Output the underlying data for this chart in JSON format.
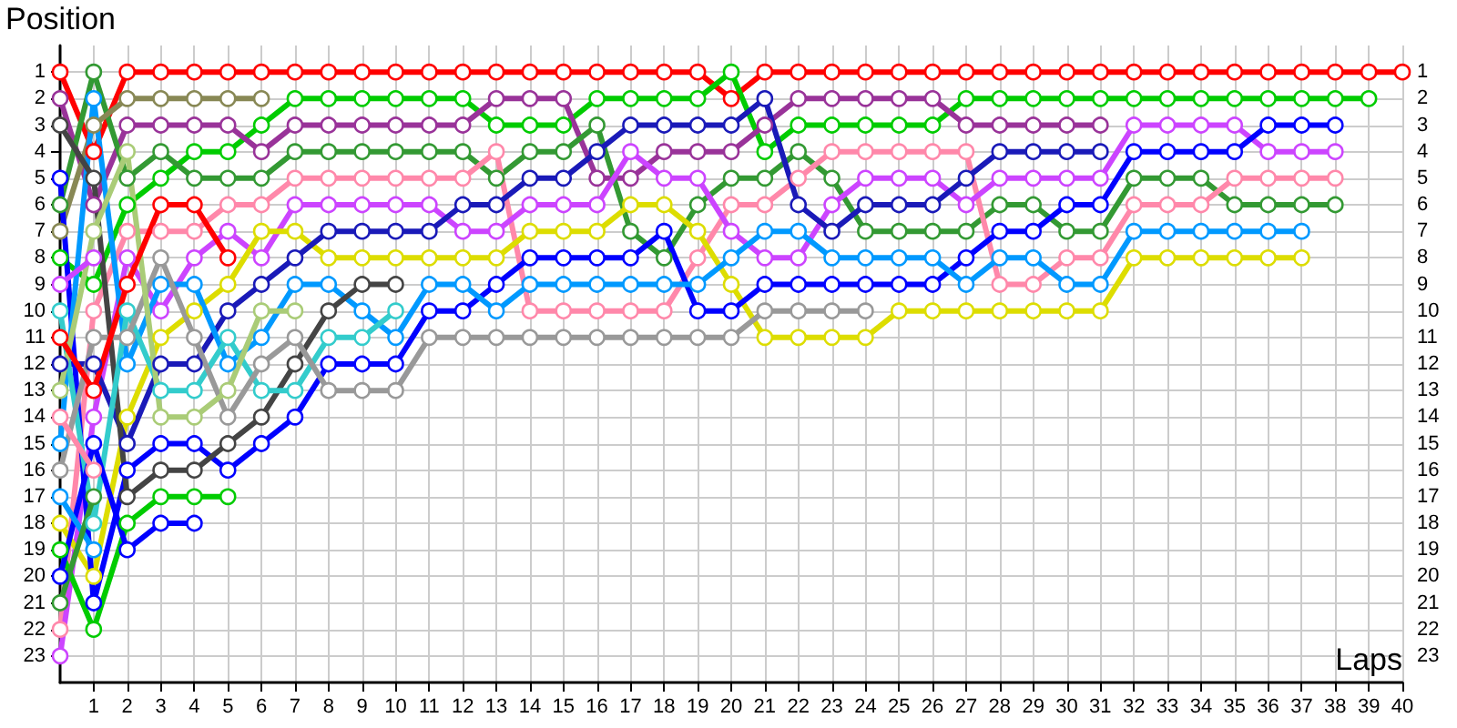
{
  "chart_data": {
    "type": "line",
    "xlabel": "Laps",
    "ylabel": "Position",
    "x": [
      0,
      1,
      2,
      3,
      4,
      5,
      6,
      7,
      8,
      9,
      10,
      11,
      12,
      13,
      14,
      15,
      16,
      17,
      18,
      19,
      20,
      21,
      22,
      23,
      24,
      25,
      26,
      27,
      28,
      29,
      30,
      31,
      32,
      33,
      34,
      35,
      36,
      37,
      38,
      39,
      40
    ],
    "xlim": [
      0,
      40
    ],
    "xticks": [
      1,
      2,
      3,
      4,
      5,
      6,
      7,
      8,
      9,
      10,
      11,
      12,
      13,
      14,
      15,
      16,
      17,
      18,
      19,
      20,
      21,
      22,
      23,
      24,
      25,
      26,
      27,
      28,
      29,
      30,
      31,
      32,
      33,
      34,
      35,
      36,
      37,
      38,
      39,
      40
    ],
    "ylim": [
      24,
      0
    ],
    "yticks": [
      1,
      2,
      3,
      4,
      5,
      6,
      7,
      8,
      9,
      10,
      11,
      12,
      13,
      14,
      15,
      16,
      17,
      18,
      19,
      20,
      21,
      22,
      23
    ],
    "y2lim": [
      24,
      0
    ],
    "y2ticks": [
      1,
      2,
      3,
      4,
      5,
      6,
      7,
      8,
      9,
      10,
      11,
      12,
      13,
      14,
      15,
      16,
      17,
      18,
      19,
      20,
      21,
      22,
      23
    ],
    "grid": true,
    "marker": "circle",
    "series": [
      {
        "color": "#ff0000",
        "values": [
          1,
          4,
          1,
          1,
          1,
          1,
          1,
          1,
          1,
          1,
          1,
          1,
          1,
          1,
          1,
          1,
          1,
          1,
          1,
          1,
          2,
          1,
          1,
          1,
          1,
          1,
          1,
          1,
          1,
          1,
          1,
          1,
          1,
          1,
          1,
          1,
          1,
          1,
          1,
          1,
          1
        ]
      },
      {
        "color": "#00cc00",
        "values": [
          8,
          9,
          6,
          5,
          4,
          4,
          3,
          2,
          2,
          2,
          2,
          2,
          2,
          3,
          3,
          3,
          2,
          2,
          2,
          2,
          1,
          4,
          3,
          3,
          3,
          3,
          3,
          2,
          2,
          2,
          2,
          2,
          2,
          2,
          2,
          2,
          2,
          2,
          2,
          2,
          null
        ]
      },
      {
        "color": "#993399",
        "values": [
          2,
          6,
          3,
          3,
          3,
          3,
          4,
          3,
          3,
          3,
          3,
          3,
          3,
          2,
          2,
          2,
          5,
          5,
          4,
          4,
          4,
          3,
          2,
          2,
          2,
          2,
          2,
          3,
          3,
          3,
          3,
          3,
          null,
          null,
          null,
          null,
          null,
          null,
          null,
          null,
          null
        ]
      },
      {
        "color": "#339933",
        "values": [
          6,
          1,
          5,
          4,
          5,
          5,
          5,
          4,
          4,
          4,
          4,
          4,
          4,
          5,
          4,
          4,
          3,
          7,
          8,
          6,
          5,
          5,
          4,
          5,
          7,
          7,
          7,
          7,
          6,
          6,
          7,
          7,
          5,
          5,
          5,
          6,
          6,
          6,
          6,
          null,
          null
        ]
      },
      {
        "color": "#888855",
        "values": [
          7,
          3,
          2,
          2,
          2,
          2,
          2,
          null,
          null,
          null,
          null,
          null,
          null,
          null,
          null,
          null,
          null,
          null,
          null,
          null,
          null,
          null,
          null,
          null,
          null,
          null,
          null,
          null,
          null,
          null,
          null,
          null,
          null,
          null,
          null,
          null,
          null,
          null,
          null,
          null,
          null
        ]
      },
      {
        "color": "#ff88aa",
        "values": [
          22,
          10,
          7,
          7,
          7,
          6,
          6,
          5,
          5,
          5,
          5,
          5,
          5,
          4,
          10,
          10,
          10,
          10,
          10,
          8,
          6,
          6,
          5,
          4,
          4,
          4,
          4,
          4,
          9,
          9,
          8,
          8,
          6,
          6,
          6,
          5,
          5,
          5,
          5,
          null,
          null
        ]
      },
      {
        "color": "#cc44ff",
        "values": [
          23,
          14,
          8,
          10,
          8,
          7,
          8,
          6,
          6,
          6,
          6,
          6,
          7,
          7,
          6,
          6,
          6,
          4,
          5,
          5,
          7,
          8,
          8,
          6,
          5,
          5,
          5,
          6,
          5,
          5,
          5,
          5,
          3,
          3,
          3,
          3,
          4,
          4,
          4,
          null,
          null
        ]
      },
      {
        "color": "#dddd00",
        "values": [
          18,
          20,
          14,
          11,
          10,
          9,
          7,
          7,
          8,
          8,
          8,
          8,
          8,
          8,
          7,
          7,
          7,
          6,
          6,
          7,
          9,
          11,
          11,
          11,
          11,
          10,
          10,
          10,
          10,
          10,
          10,
          10,
          8,
          8,
          8,
          8,
          8,
          8,
          null,
          null,
          null
        ]
      },
      {
        "color": "#1a1ab8",
        "values": [
          12,
          12,
          15,
          12,
          12,
          10,
          9,
          8,
          7,
          7,
          7,
          7,
          6,
          6,
          5,
          5,
          4,
          3,
          3,
          3,
          3,
          2,
          6,
          7,
          6,
          6,
          6,
          5,
          4,
          4,
          4,
          4,
          null,
          null,
          null,
          null,
          null,
          null,
          null,
          null,
          null
        ]
      },
      {
        "color": "#0000ff",
        "values": [
          5,
          21,
          16,
          15,
          15,
          16,
          15,
          14,
          12,
          12,
          12,
          10,
          10,
          9,
          8,
          8,
          8,
          8,
          7,
          10,
          10,
          9,
          9,
          9,
          9,
          9,
          9,
          8,
          7,
          7,
          6,
          6,
          4,
          4,
          4,
          4,
          3,
          3,
          3,
          null,
          null
        ]
      },
      {
        "color": "#0099ff",
        "values": [
          15,
          2,
          12,
          9,
          9,
          12,
          11,
          9,
          9,
          10,
          11,
          9,
          9,
          10,
          9,
          9,
          9,
          9,
          9,
          9,
          8,
          7,
          7,
          8,
          8,
          8,
          8,
          9,
          8,
          8,
          9,
          9,
          7,
          7,
          7,
          7,
          7,
          7,
          null,
          null,
          null
        ]
      },
      {
        "color": "#444444",
        "values": [
          3,
          5,
          17,
          16,
          16,
          15,
          14,
          12,
          10,
          9,
          9,
          null,
          null,
          null,
          null,
          null,
          null,
          null,
          null,
          null,
          null,
          null,
          null,
          null,
          null,
          null,
          null,
          null,
          null,
          null,
          null,
          null,
          null,
          null,
          null,
          null,
          null,
          null,
          null,
          null,
          null
        ]
      },
      {
        "color": "#33cccc",
        "values": [
          10,
          18,
          10,
          13,
          13,
          11,
          13,
          13,
          11,
          11,
          10,
          null,
          null,
          null,
          null,
          null,
          null,
          null,
          null,
          null,
          null,
          null,
          null,
          null,
          null,
          null,
          null,
          null,
          null,
          null,
          null,
          null,
          null,
          null,
          null,
          null,
          null,
          null,
          null,
          null,
          null
        ]
      },
      {
        "color": "#999999",
        "values": [
          16,
          11,
          11,
          8,
          11,
          14,
          12,
          11,
          13,
          13,
          13,
          11,
          11,
          11,
          11,
          11,
          11,
          11,
          11,
          11,
          11,
          10,
          10,
          10,
          10,
          null,
          null,
          null,
          null,
          null,
          null,
          null,
          null,
          null,
          null,
          null,
          null,
          null,
          null,
          null,
          null
        ]
      },
      {
        "color": "#aacc77",
        "values": [
          13,
          7,
          4,
          14,
          14,
          13,
          10,
          10,
          null,
          null,
          null,
          null,
          null,
          null,
          null,
          null,
          null,
          null,
          null,
          null,
          null,
          null,
          null,
          null,
          null,
          null,
          null,
          null,
          null,
          null,
          null,
          null,
          null,
          null,
          null,
          null,
          null,
          null,
          null,
          null,
          null
        ]
      },
      {
        "color": "#ff0000",
        "values": [
          11,
          13,
          9,
          6,
          6,
          8,
          null,
          null,
          null,
          null,
          null,
          null,
          null,
          null,
          null,
          null,
          null,
          null,
          null,
          null,
          null,
          null,
          null,
          null,
          null,
          null,
          null,
          null,
          null,
          null,
          null,
          null,
          null,
          null,
          null,
          null,
          null,
          null,
          null,
          null,
          null
        ]
      },
      {
        "color": "#00cc00",
        "values": [
          19,
          22,
          18,
          17,
          17,
          17,
          null,
          null,
          null,
          null,
          null,
          null,
          null,
          null,
          null,
          null,
          null,
          null,
          null,
          null,
          null,
          null,
          null,
          null,
          null,
          null,
          null,
          null,
          null,
          null,
          null,
          null,
          null,
          null,
          null,
          null,
          null,
          null,
          null,
          null,
          null
        ]
      },
      {
        "color": "#0000ff",
        "values": [
          20,
          15,
          19,
          18,
          18,
          null,
          null,
          null,
          null,
          null,
          null,
          null,
          null,
          null,
          null,
          null,
          null,
          null,
          null,
          null,
          null,
          null,
          null,
          null,
          null,
          null,
          null,
          null,
          null,
          null,
          null,
          null,
          null,
          null,
          null,
          null,
          null,
          null,
          null,
          null,
          null
        ]
      },
      {
        "color": "#cc44ff",
        "values": [
          9,
          8,
          null,
          null,
          null,
          null,
          null,
          null,
          null,
          null,
          null,
          null,
          null,
          null,
          null,
          null,
          null,
          null,
          null,
          null,
          null,
          null,
          null,
          null,
          null,
          null,
          null,
          null,
          null,
          null,
          null,
          null,
          null,
          null,
          null,
          null,
          null,
          null,
          null,
          null,
          null
        ]
      },
      {
        "color": "#ff88aa",
        "values": [
          14,
          16,
          null,
          null,
          null,
          null,
          null,
          null,
          null,
          null,
          null,
          null,
          null,
          null,
          null,
          null,
          null,
          null,
          null,
          null,
          null,
          null,
          null,
          null,
          null,
          null,
          null,
          null,
          null,
          null,
          null,
          null,
          null,
          null,
          null,
          null,
          null,
          null,
          null,
          null,
          null
        ]
      },
      {
        "color": "#0099ff",
        "values": [
          17,
          19,
          null,
          null,
          null,
          null,
          null,
          null,
          null,
          null,
          null,
          null,
          null,
          null,
          null,
          null,
          null,
          null,
          null,
          null,
          null,
          null,
          null,
          null,
          null,
          null,
          null,
          null,
          null,
          null,
          null,
          null,
          null,
          null,
          null,
          null,
          null,
          null,
          null,
          null,
          null
        ]
      },
      {
        "color": "#339933",
        "values": [
          21,
          17,
          null,
          null,
          null,
          null,
          null,
          null,
          null,
          null,
          null,
          null,
          null,
          null,
          null,
          null,
          null,
          null,
          null,
          null,
          null,
          null,
          null,
          null,
          null,
          null,
          null,
          null,
          null,
          null,
          null,
          null,
          null,
          null,
          null,
          null,
          null,
          null,
          null,
          null,
          null
        ]
      }
    ]
  }
}
